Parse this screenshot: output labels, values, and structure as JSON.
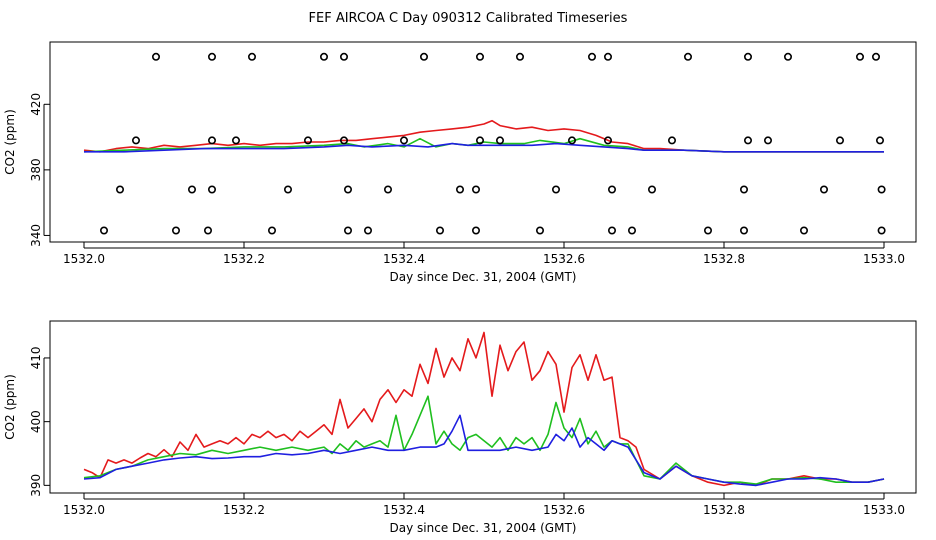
{
  "title": "FEF AIRCOA C  Day 090312  Calibrated Timeseries",
  "colors": {
    "red": "#e41a1c",
    "green": "#1fbf1f",
    "blue": "#1f1fe0",
    "axis": "#000000"
  },
  "chart_data": [
    {
      "type": "line",
      "name": "top-panel",
      "xlabel": "Day since Dec. 31, 2004 (GMT)",
      "ylabel": "CO2 (ppm)",
      "xlim": [
        1532.0,
        1533.0
      ],
      "ylim": [
        336,
        458
      ],
      "xticks": [
        1532.0,
        1532.2,
        1532.4,
        1532.6,
        1532.8,
        1533.0
      ],
      "xtick_labels": [
        "1532.0",
        "1532.2",
        "1532.4",
        "1532.6",
        "1532.8",
        "1533.0"
      ],
      "yticks": [
        340,
        380,
        420
      ],
      "ytick_labels": [
        "340",
        "380",
        "420"
      ],
      "series": [
        {
          "name": "red",
          "color": "#e41a1c",
          "x": [
            1532.0,
            1532.02,
            1532.04,
            1532.06,
            1532.08,
            1532.1,
            1532.12,
            1532.14,
            1532.16,
            1532.18,
            1532.2,
            1532.22,
            1532.24,
            1532.26,
            1532.28,
            1532.3,
            1532.32,
            1532.34,
            1532.36,
            1532.38,
            1532.4,
            1532.42,
            1532.44,
            1532.46,
            1532.48,
            1532.5,
            1532.51,
            1532.52,
            1532.54,
            1532.56,
            1532.58,
            1532.6,
            1532.62,
            1532.64,
            1532.66,
            1532.68,
            1532.7,
            1532.72,
            1532.75,
            1532.8,
            1532.85,
            1532.9,
            1532.95,
            1533.0
          ],
          "y": [
            392,
            391,
            393,
            394,
            393,
            395,
            394,
            395,
            396,
            395,
            396,
            395,
            396,
            396,
            397,
            397,
            398,
            398,
            399,
            400,
            401,
            403,
            404,
            405,
            406,
            408,
            410,
            407,
            405,
            406,
            404,
            405,
            404,
            401,
            397,
            396,
            393,
            393,
            392,
            391,
            391,
            391,
            391,
            391
          ]
        },
        {
          "name": "green",
          "color": "#1fbf1f",
          "x": [
            1532.0,
            1532.05,
            1532.1,
            1532.15,
            1532.2,
            1532.25,
            1532.3,
            1532.33,
            1532.35,
            1532.38,
            1532.4,
            1532.42,
            1532.44,
            1532.46,
            1532.48,
            1532.5,
            1532.52,
            1532.55,
            1532.57,
            1532.6,
            1532.62,
            1532.65,
            1532.68,
            1532.7,
            1532.75,
            1532.8,
            1532.9,
            1533.0
          ],
          "y": [
            391,
            392,
            393,
            393,
            394,
            394,
            395,
            396,
            394,
            396,
            394,
            399,
            394,
            396,
            395,
            397,
            396,
            396,
            398,
            396,
            399,
            395,
            394,
            392,
            392,
            391,
            391,
            391
          ]
        },
        {
          "name": "blue",
          "color": "#1f1fe0",
          "x": [
            1532.0,
            1532.05,
            1532.1,
            1532.15,
            1532.2,
            1532.25,
            1532.3,
            1532.33,
            1532.36,
            1532.4,
            1532.43,
            1532.46,
            1532.48,
            1532.5,
            1532.53,
            1532.56,
            1532.59,
            1532.62,
            1532.65,
            1532.68,
            1532.7,
            1532.75,
            1532.8,
            1532.9,
            1533.0
          ],
          "y": [
            391,
            391,
            392,
            393,
            393,
            393,
            394,
            395,
            394,
            395,
            394,
            396,
            395,
            395,
            395,
            395,
            396,
            395,
            394,
            393,
            392,
            392,
            391,
            391,
            391
          ]
        }
      ],
      "markers": {
        "shape": "open-circle",
        "rows": [
          {
            "y": 449,
            "x": [
              1532.09,
              1532.16,
              1532.21,
              1532.3,
              1532.325,
              1532.425,
              1532.495,
              1532.545,
              1532.635,
              1532.655,
              1532.755,
              1532.83,
              1532.88,
              1532.97,
              1532.99
            ]
          },
          {
            "y": 398,
            "x": [
              1532.065,
              1532.16,
              1532.19,
              1532.28,
              1532.325,
              1532.4,
              1532.495,
              1532.52,
              1532.61,
              1532.655,
              1532.735,
              1532.83,
              1532.855,
              1532.945,
              1532.995
            ]
          },
          {
            "y": 368,
            "x": [
              1532.045,
              1532.135,
              1532.16,
              1532.255,
              1532.33,
              1532.38,
              1532.47,
              1532.49,
              1532.59,
              1532.66,
              1532.71,
              1532.825,
              1532.925,
              1532.997
            ]
          },
          {
            "y": 343,
            "x": [
              1532.025,
              1532.115,
              1532.155,
              1532.235,
              1532.33,
              1532.355,
              1532.445,
              1532.49,
              1532.57,
              1532.66,
              1532.685,
              1532.78,
              1532.825,
              1532.9,
              1532.997
            ]
          }
        ]
      }
    },
    {
      "type": "line",
      "name": "bottom-panel",
      "xlabel": "Day since Dec. 31, 2004 (GMT)",
      "ylabel": "CO2 (ppm)",
      "xlim": [
        1532.0,
        1533.0
      ],
      "ylim": [
        388.8,
        415.8
      ],
      "xticks": [
        1532.0,
        1532.2,
        1532.4,
        1532.6,
        1532.8,
        1533.0
      ],
      "xtick_labels": [
        "1532.0",
        "1532.2",
        "1532.4",
        "1532.6",
        "1532.8",
        "1533.0"
      ],
      "yticks": [
        390,
        400,
        410
      ],
      "ytick_labels": [
        "390",
        "400",
        "410"
      ],
      "series": [
        {
          "name": "red",
          "color": "#e41a1c",
          "x": [
            1532.0,
            1532.01,
            1532.02,
            1532.03,
            1532.04,
            1532.05,
            1532.06,
            1532.07,
            1532.08,
            1532.09,
            1532.1,
            1532.11,
            1532.12,
            1532.13,
            1532.14,
            1532.15,
            1532.16,
            1532.17,
            1532.18,
            1532.19,
            1532.2,
            1532.21,
            1532.22,
            1532.23,
            1532.24,
            1532.25,
            1532.26,
            1532.27,
            1532.28,
            1532.29,
            1532.3,
            1532.31,
            1532.32,
            1532.33,
            1532.34,
            1532.35,
            1532.36,
            1532.37,
            1532.38,
            1532.39,
            1532.4,
            1532.41,
            1532.42,
            1532.43,
            1532.44,
            1532.45,
            1532.46,
            1532.47,
            1532.48,
            1532.49,
            1532.5,
            1532.51,
            1532.52,
            1532.53,
            1532.54,
            1532.55,
            1532.56,
            1532.57,
            1532.58,
            1532.59,
            1532.6,
            1532.61,
            1532.62,
            1532.63,
            1532.64,
            1532.65,
            1532.66,
            1532.67,
            1532.68,
            1532.69,
            1532.7,
            1532.72,
            1532.74,
            1532.76,
            1532.78,
            1532.8,
            1532.82,
            1532.84,
            1532.86,
            1532.88,
            1532.9,
            1532.92,
            1532.94,
            1532.96,
            1532.98,
            1533.0
          ],
          "y": [
            392.5,
            392.0,
            391.2,
            394.0,
            393.5,
            394.0,
            393.5,
            394.3,
            395.0,
            394.5,
            395.6,
            394.5,
            396.8,
            395.5,
            398.0,
            396.0,
            396.5,
            397.0,
            396.5,
            397.5,
            396.5,
            398.0,
            397.5,
            398.5,
            397.5,
            398.0,
            397.0,
            398.5,
            397.5,
            398.5,
            399.5,
            398.0,
            403.5,
            399.0,
            400.5,
            402.0,
            400.0,
            403.5,
            405.0,
            403.0,
            405.0,
            404.0,
            409.0,
            406.0,
            411.5,
            407.0,
            410.0,
            408.0,
            413.0,
            410.0,
            414.0,
            404.0,
            412.0,
            408.0,
            411.0,
            412.5,
            406.5,
            408.0,
            411.0,
            409.0,
            401.5,
            408.5,
            410.5,
            406.5,
            410.5,
            406.5,
            407.0,
            397.5,
            397.0,
            396.0,
            392.5,
            391.0,
            393.0,
            391.5,
            390.5,
            390.0,
            390.5,
            390.0,
            391.0,
            391.0,
            391.5,
            391.0,
            391.0,
            390.5,
            390.5,
            391.0
          ]
        },
        {
          "name": "green",
          "color": "#1fbf1f",
          "x": [
            1532.0,
            1532.02,
            1532.04,
            1532.06,
            1532.08,
            1532.1,
            1532.12,
            1532.14,
            1532.16,
            1532.18,
            1532.2,
            1532.22,
            1532.24,
            1532.26,
            1532.28,
            1532.3,
            1532.31,
            1532.32,
            1532.33,
            1532.34,
            1532.35,
            1532.36,
            1532.37,
            1532.38,
            1532.39,
            1532.4,
            1532.41,
            1532.42,
            1532.43,
            1532.44,
            1532.45,
            1532.46,
            1532.47,
            1532.48,
            1532.49,
            1532.5,
            1532.51,
            1532.52,
            1532.53,
            1532.54,
            1532.55,
            1532.56,
            1532.57,
            1532.58,
            1532.59,
            1532.6,
            1532.61,
            1532.62,
            1532.63,
            1532.64,
            1532.65,
            1532.66,
            1532.67,
            1532.68,
            1532.7,
            1532.72,
            1532.74,
            1532.76,
            1532.78,
            1532.8,
            1532.82,
            1532.84,
            1532.86,
            1532.88,
            1532.9,
            1532.92,
            1532.94,
            1532.96,
            1532.98,
            1533.0
          ],
          "y": [
            391.2,
            391.5,
            392.5,
            393.0,
            394.0,
            394.5,
            395.0,
            394.8,
            395.5,
            395.0,
            395.5,
            396.0,
            395.5,
            396.0,
            395.5,
            396.0,
            395.0,
            396.5,
            395.5,
            397.0,
            396.0,
            396.5,
            397.0,
            396.0,
            401.0,
            395.5,
            398.0,
            401.0,
            404.0,
            396.5,
            398.5,
            396.5,
            395.5,
            397.5,
            398.0,
            397.0,
            396.0,
            397.5,
            395.5,
            397.5,
            396.5,
            397.5,
            395.5,
            398.0,
            403.0,
            399.0,
            397.5,
            400.5,
            396.5,
            398.5,
            396.0,
            397.0,
            396.5,
            396.5,
            391.5,
            391.0,
            393.5,
            391.5,
            391.0,
            390.5,
            390.5,
            390.2,
            391.0,
            391.0,
            391.2,
            391.0,
            390.5,
            390.5,
            390.5,
            391.0
          ]
        },
        {
          "name": "blue",
          "color": "#1f1fe0",
          "x": [
            1532.0,
            1532.02,
            1532.04,
            1532.06,
            1532.08,
            1532.1,
            1532.12,
            1532.14,
            1532.16,
            1532.18,
            1532.2,
            1532.22,
            1532.24,
            1532.26,
            1532.28,
            1532.3,
            1532.32,
            1532.34,
            1532.36,
            1532.38,
            1532.4,
            1532.42,
            1532.44,
            1532.45,
            1532.46,
            1532.47,
            1532.48,
            1532.5,
            1532.52,
            1532.54,
            1532.56,
            1532.58,
            1532.59,
            1532.6,
            1532.61,
            1532.62,
            1532.63,
            1532.64,
            1532.65,
            1532.66,
            1532.68,
            1532.7,
            1532.72,
            1532.74,
            1532.76,
            1532.78,
            1532.8,
            1532.82,
            1532.84,
            1532.86,
            1532.88,
            1532.9,
            1532.92,
            1532.94,
            1532.96,
            1532.98,
            1533.0
          ],
          "y": [
            391.0,
            391.2,
            392.5,
            393.0,
            393.5,
            394.0,
            394.3,
            394.5,
            394.2,
            394.3,
            394.5,
            394.5,
            395.0,
            394.8,
            395.0,
            395.5,
            395.0,
            395.5,
            396.0,
            395.5,
            395.5,
            396.0,
            396.0,
            396.5,
            398.5,
            401.0,
            395.5,
            395.5,
            395.5,
            396.0,
            395.5,
            396.0,
            398.0,
            397.0,
            399.0,
            396.0,
            397.5,
            396.5,
            395.5,
            397.0,
            396.0,
            392.0,
            391.0,
            393.0,
            391.5,
            391.0,
            390.5,
            390.2,
            390.0,
            390.5,
            391.0,
            391.0,
            391.2,
            391.0,
            390.5,
            390.5,
            391.0
          ]
        }
      ]
    }
  ]
}
